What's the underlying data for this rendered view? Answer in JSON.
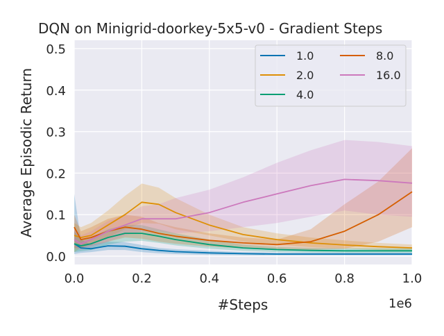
{
  "chart_data": {
    "type": "line",
    "title": "DQN on Minigrid-doorkey-5x5-v0 - Gradient Steps",
    "xlabel": "#Steps",
    "ylabel": "Average Episodic Return",
    "x_offset_label": "1e6",
    "xlim": [
      0,
      1.0
    ],
    "ylim": [
      -0.02,
      0.52
    ],
    "x_ticks": [
      "0.0",
      "0.2",
      "0.4",
      "0.6",
      "0.8",
      "1.0"
    ],
    "y_ticks": [
      "0.0",
      "0.1",
      "0.2",
      "0.3",
      "0.4",
      "0.5"
    ],
    "grid": true,
    "legend_position": "top-right",
    "x": [
      0.0,
      0.02,
      0.05,
      0.1,
      0.15,
      0.2,
      0.25,
      0.3,
      0.4,
      0.5,
      0.6,
      0.7,
      0.8,
      0.9,
      1.0
    ],
    "series": [
      {
        "name": "1.0",
        "color": "#0173b2",
        "values": [
          0.03,
          0.02,
          0.018,
          0.025,
          0.024,
          0.018,
          0.014,
          0.011,
          0.008,
          0.006,
          0.005,
          0.005,
          0.005,
          0.005,
          0.005
        ],
        "lower": [
          0.005,
          0.008,
          0.01,
          0.015,
          0.015,
          0.01,
          0.007,
          0.005,
          0.003,
          0.002,
          0.002,
          0.002,
          0.002,
          0.002,
          0.002
        ],
        "upper": [
          0.15,
          0.04,
          0.028,
          0.035,
          0.034,
          0.027,
          0.02,
          0.017,
          0.013,
          0.01,
          0.009,
          0.009,
          0.009,
          0.009,
          0.009
        ]
      },
      {
        "name": "2.0",
        "color": "#de8f05",
        "values": [
          0.05,
          0.045,
          0.05,
          0.075,
          0.1,
          0.13,
          0.125,
          0.105,
          0.075,
          0.052,
          0.04,
          0.032,
          0.027,
          0.023,
          0.02
        ],
        "lower": [
          0.01,
          0.02,
          0.03,
          0.045,
          0.065,
          0.08,
          0.078,
          0.065,
          0.05,
          0.035,
          0.028,
          0.022,
          0.018,
          0.015,
          0.012
        ],
        "upper": [
          0.08,
          0.07,
          0.08,
          0.11,
          0.145,
          0.175,
          0.165,
          0.14,
          0.1,
          0.07,
          0.055,
          0.045,
          0.038,
          0.032,
          0.028
        ]
      },
      {
        "name": "4.0",
        "color": "#029e73",
        "values": [
          0.03,
          0.025,
          0.03,
          0.045,
          0.055,
          0.055,
          0.048,
          0.04,
          0.028,
          0.02,
          0.016,
          0.014,
          0.013,
          0.013,
          0.013
        ],
        "lower": [
          0.01,
          0.012,
          0.015,
          0.028,
          0.035,
          0.037,
          0.032,
          0.026,
          0.018,
          0.013,
          0.01,
          0.009,
          0.008,
          0.008,
          0.008
        ],
        "upper": [
          0.06,
          0.04,
          0.045,
          0.065,
          0.075,
          0.075,
          0.065,
          0.055,
          0.04,
          0.028,
          0.022,
          0.02,
          0.019,
          0.019,
          0.019
        ]
      },
      {
        "name": "8.0",
        "color": "#d55e00",
        "values": [
          0.07,
          0.04,
          0.045,
          0.06,
          0.07,
          0.065,
          0.055,
          0.048,
          0.038,
          0.032,
          0.028,
          0.035,
          0.06,
          0.1,
          0.155
        ],
        "lower": [
          0.02,
          0.02,
          0.025,
          0.035,
          0.045,
          0.042,
          0.035,
          0.03,
          0.023,
          0.019,
          0.016,
          0.015,
          0.018,
          0.035,
          0.07
        ],
        "upper": [
          0.1,
          0.06,
          0.07,
          0.09,
          0.1,
          0.095,
          0.08,
          0.07,
          0.055,
          0.045,
          0.04,
          0.065,
          0.125,
          0.18,
          0.26
        ]
      },
      {
        "name": "16.0",
        "color": "#cc78bc",
        "values": [
          0.04,
          0.03,
          0.04,
          0.06,
          0.075,
          0.09,
          0.09,
          0.09,
          0.105,
          0.13,
          0.15,
          0.17,
          0.185,
          0.182,
          0.176
        ],
        "lower": [
          0.02,
          0.015,
          0.02,
          0.035,
          0.05,
          0.06,
          0.06,
          0.055,
          0.06,
          0.07,
          0.08,
          0.095,
          0.11,
          0.1,
          0.095
        ],
        "upper": [
          0.07,
          0.05,
          0.06,
          0.085,
          0.1,
          0.12,
          0.125,
          0.14,
          0.16,
          0.19,
          0.225,
          0.255,
          0.28,
          0.275,
          0.265
        ]
      }
    ]
  }
}
